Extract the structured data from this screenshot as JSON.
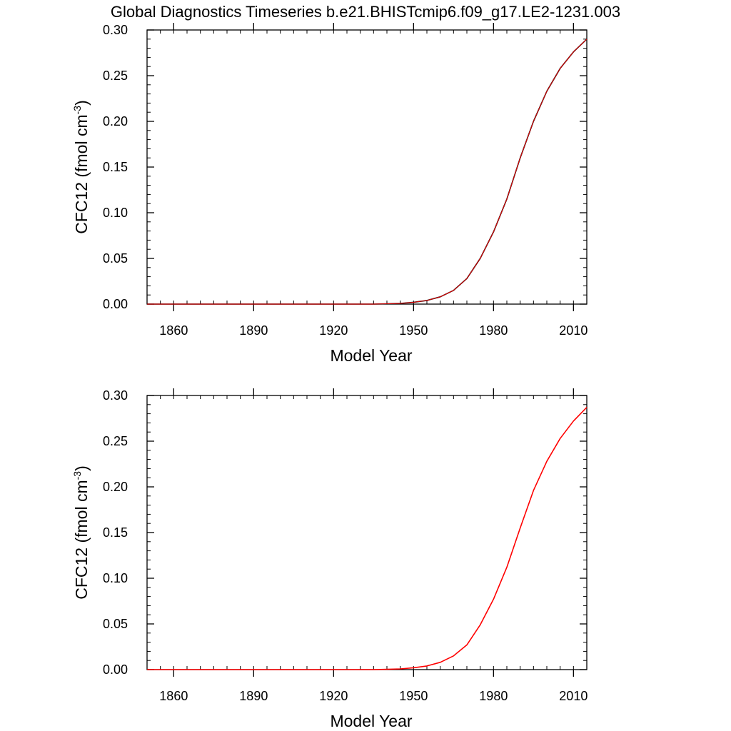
{
  "title": "Global Diagnostics Timeseries b.e21.BHISTcmip6.f09_g17.LE2-1231.003",
  "colors": {
    "frame": "#000000",
    "series_top": "#000000",
    "series_top_overlay": "#ff0000",
    "series_bottom": "#ff0000"
  },
  "chart_data": [
    {
      "type": "line",
      "xlabel": "Model Year",
      "ylabel": {
        "main": "CFC12 (fmol cm",
        "superscript": "-3",
        "tail": ")"
      },
      "xlim": [
        1850,
        2015
      ],
      "ylim": [
        0.0,
        0.3
      ],
      "xticks": [
        1860,
        1890,
        1920,
        1950,
        1980,
        2010
      ],
      "xtick_labels": [
        "1860",
        "1890",
        "1920",
        "1950",
        "1980",
        "2010"
      ],
      "yticks": [
        0.0,
        0.05,
        0.1,
        0.15,
        0.2,
        0.25,
        0.3
      ],
      "ytick_labels": [
        "0.00",
        "0.05",
        "0.10",
        "0.15",
        "0.20",
        "0.25",
        "0.30"
      ],
      "series": [
        {
          "color": "#000000",
          "x": [
            1850,
            1935,
            1940,
            1945,
            1950,
            1955,
            1960,
            1965,
            1970,
            1975,
            1980,
            1985,
            1990,
            1995,
            2000,
            2005,
            2010,
            2015
          ],
          "y": [
            0.0,
            0.0,
            0.0003,
            0.0008,
            0.002,
            0.004,
            0.008,
            0.015,
            0.028,
            0.05,
            0.079,
            0.115,
            0.16,
            0.2,
            0.233,
            0.258,
            0.276,
            0.29
          ]
        },
        {
          "color": "#ff0000",
          "x": [
            1850,
            1935,
            1940,
            1945,
            1950,
            1955,
            1960,
            1965,
            1970,
            1975,
            1980,
            1985,
            1990,
            1995,
            2000,
            2005,
            2010,
            2015
          ],
          "y": [
            0.0,
            0.0,
            0.0003,
            0.0008,
            0.002,
            0.004,
            0.008,
            0.015,
            0.028,
            0.05,
            0.079,
            0.115,
            0.16,
            0.2,
            0.233,
            0.258,
            0.276,
            0.29
          ]
        }
      ]
    },
    {
      "type": "line",
      "xlabel": "Model Year",
      "ylabel": {
        "main": "CFC12 (fmol cm",
        "superscript": "-3",
        "tail": ")"
      },
      "xlim": [
        1850,
        2015
      ],
      "ylim": [
        0.0,
        0.3
      ],
      "xticks": [
        1860,
        1890,
        1920,
        1950,
        1980,
        2010
      ],
      "xtick_labels": [
        "1860",
        "1890",
        "1920",
        "1950",
        "1980",
        "2010"
      ],
      "yticks": [
        0.0,
        0.05,
        0.1,
        0.15,
        0.2,
        0.25,
        0.3
      ],
      "ytick_labels": [
        "0.00",
        "0.05",
        "0.10",
        "0.15",
        "0.20",
        "0.25",
        "0.30"
      ],
      "series": [
        {
          "color": "#ff0000",
          "x": [
            1850,
            1935,
            1940,
            1945,
            1950,
            1955,
            1960,
            1965,
            1970,
            1975,
            1980,
            1985,
            1990,
            1995,
            2000,
            2005,
            2010,
            2015
          ],
          "y": [
            0.0,
            0.0,
            0.0003,
            0.0008,
            0.002,
            0.004,
            0.008,
            0.015,
            0.027,
            0.049,
            0.077,
            0.112,
            0.155,
            0.196,
            0.228,
            0.253,
            0.272,
            0.287
          ]
        }
      ]
    }
  ]
}
